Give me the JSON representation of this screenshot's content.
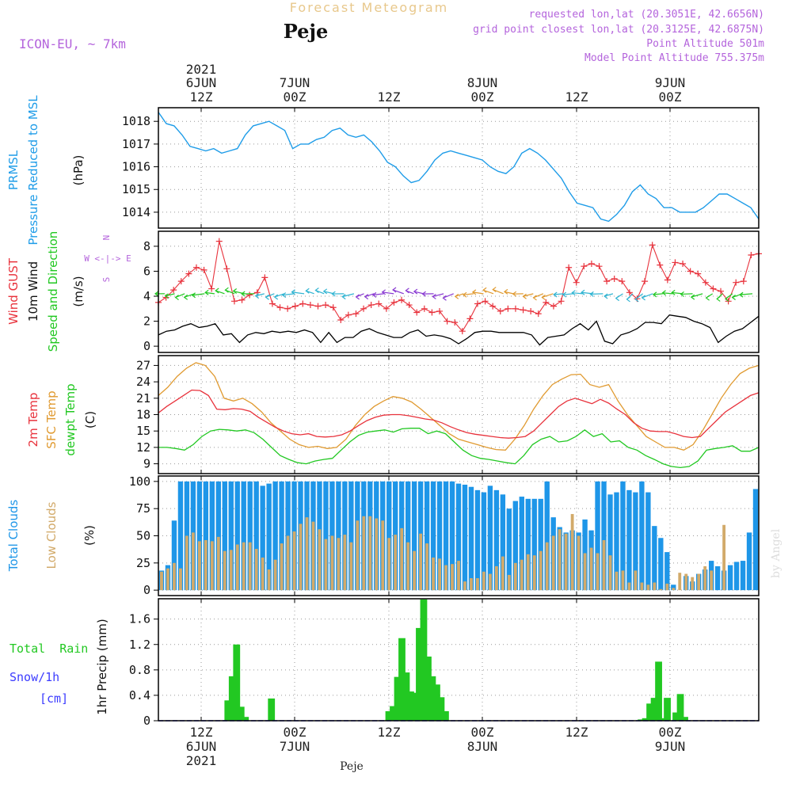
{
  "header": {
    "top_title": "Forecast Meteogram",
    "location": "Peje",
    "model": "ICON-EU, ~ 7km",
    "requested": "requested lon,lat (20.3051E, 42.6656N)",
    "grid_point": "grid point closest lon,lat (20.3125E, 42.6875N)",
    "point_altitude": "Point Altitude 501m",
    "model_altitude": "Model Point Altitude 755.375m",
    "footer_location": "Peje",
    "watermark": "by Angel"
  },
  "colors": {
    "pressure": "#1e9ce8",
    "gust": "#e8323c",
    "wind": "#000000",
    "temp2m": "#e8323c",
    "sfc": "#e09a30",
    "dewpt": "#22c822",
    "total_clouds": "#1e96e8",
    "low_clouds": "#d2aa6a",
    "rain": "#22c822",
    "snow": "#3c3cff",
    "label_purple": "#b464dc",
    "header_gold": "#e8c88c"
  },
  "time_axis": {
    "top": [
      {
        "year": "2021",
        "day": "6JUN",
        "hour": "12Z"
      },
      {
        "year": "",
        "day": "7JUN",
        "hour": "00Z"
      },
      {
        "year": "",
        "day": "",
        "hour": "12Z"
      },
      {
        "year": "",
        "day": "8JUN",
        "hour": "00Z"
      },
      {
        "year": "",
        "day": "",
        "hour": "12Z"
      },
      {
        "year": "",
        "day": "9JUN",
        "hour": "00Z"
      }
    ],
    "bottom": [
      {
        "hour": "12Z",
        "day": "6JUN",
        "year": "2021"
      },
      {
        "hour": "00Z",
        "day": "7JUN",
        "year": ""
      },
      {
        "hour": "12Z",
        "day": "",
        "year": ""
      },
      {
        "hour": "00Z",
        "day": "8JUN",
        "year": ""
      },
      {
        "hour": "12Z",
        "day": "",
        "year": ""
      },
      {
        "hour": "00Z",
        "day": "9JUN",
        "year": ""
      }
    ]
  },
  "labels": {
    "prmsl": "PRMSL",
    "pressure_msl": "Pressure Reduced to MSL",
    "hpa": "(hPa)",
    "wind_gust": "Wind GUST",
    "wind_10m": "10m Wind",
    "speed_dir": "Speed and Direction",
    "ms": "(m/s)",
    "compass_n": "N",
    "compass_we": "W <-|-> E",
    "compass_s": "S",
    "temp2m": "2m Temp",
    "sfc_temp": "SFC Temp",
    "dewpt": "dewpt Temp",
    "celsius": "(C)",
    "total_clouds": "Total Clouds",
    "low_clouds": "Low Clouds",
    "pct": "(%)",
    "total_rain": "Total  Rain",
    "snow": "Snow/1h",
    "cm": "[cm]",
    "precip": "1hr Precip (mm)"
  },
  "chart_data": [
    {
      "type": "line",
      "title": "PRMSL Pressure Reduced to MSL",
      "ylabel": "hPa",
      "ylim": [
        1013.3,
        1018.6
      ],
      "yticks": [
        1014,
        1015,
        1016,
        1017,
        1018
      ],
      "series": [
        {
          "name": "PRMSL",
          "values": [
            1018.4,
            1017.9,
            1017.8,
            1017.4,
            1016.9,
            1016.8,
            1016.7,
            1016.8,
            1016.6,
            1016.7,
            1016.8,
            1017.4,
            1017.8,
            1017.9,
            1018.0,
            1017.8,
            1017.6,
            1016.8,
            1017.0,
            1017.0,
            1017.2,
            1017.3,
            1017.6,
            1017.7,
            1017.4,
            1017.3,
            1017.4,
            1017.1,
            1016.7,
            1016.2,
            1016.0,
            1015.6,
            1015.3,
            1015.4,
            1015.8,
            1016.3,
            1016.6,
            1016.7,
            1016.6,
            1016.5,
            1016.4,
            1016.3,
            1016.0,
            1015.8,
            1015.7,
            1016.0,
            1016.6,
            1016.8,
            1016.6,
            1016.3,
            1015.9,
            1015.5,
            1014.9,
            1014.4,
            1014.3,
            1014.2,
            1013.7,
            1013.6,
            1013.9,
            1014.3,
            1014.9,
            1015.2,
            1014.8,
            1014.6,
            1014.2,
            1014.2,
            1014.0,
            1014.0,
            1014.0,
            1014.2,
            1014.5,
            1014.8,
            1014.8,
            1014.6,
            1014.4,
            1014.2,
            1013.7
          ]
        }
      ]
    },
    {
      "type": "line",
      "title": "Wind GUST / 10m Wind Speed and Direction",
      "ylabel": "m/s",
      "ylim": [
        -0.5,
        9.2
      ],
      "yticks": [
        0,
        2,
        4,
        6,
        8
      ],
      "series": [
        {
          "name": "Wind GUST",
          "values": [
            3.5,
            3.9,
            4.5,
            5.2,
            5.8,
            6.3,
            6.1,
            4.6,
            8.4,
            6.2,
            3.6,
            3.7,
            4.1,
            4.3,
            5.5,
            3.4,
            3.1,
            3.0,
            3.2,
            3.4,
            3.3,
            3.2,
            3.3,
            3.1,
            2.1,
            2.5,
            2.6,
            3.0,
            3.3,
            3.4,
            3.0,
            3.5,
            3.7,
            3.3,
            2.7,
            3.0,
            2.7,
            2.8,
            2.0,
            1.9,
            1.2,
            2.2,
            3.4,
            3.6,
            3.2,
            2.8,
            3.0,
            3.0,
            2.9,
            2.8,
            2.6,
            3.5,
            3.2,
            3.6,
            6.3,
            5.1,
            6.4,
            6.6,
            6.4,
            5.2,
            5.4,
            5.2,
            4.3,
            3.8,
            5.2,
            8.1,
            6.5,
            5.3,
            6.7,
            6.6,
            6.0,
            5.8,
            5.1,
            4.6,
            4.4,
            3.6,
            5.1,
            5.2,
            7.3,
            7.4
          ]
        },
        {
          "name": "10m Wind",
          "values": [
            0.9,
            1.2,
            1.3,
            1.6,
            1.8,
            1.5,
            1.6,
            1.8,
            0.9,
            1.0,
            0.3,
            0.9,
            1.1,
            1.0,
            1.2,
            1.1,
            1.2,
            1.1,
            1.3,
            1.1,
            0.3,
            1.1,
            0.3,
            0.7,
            0.7,
            1.2,
            1.4,
            1.1,
            0.9,
            0.7,
            0.7,
            1.1,
            1.3,
            0.8,
            0.9,
            0.8,
            0.6,
            0.2,
            0.6,
            1.1,
            1.2,
            1.2,
            1.1,
            1.1,
            1.1,
            1.1,
            0.9,
            0.1,
            0.7,
            0.8,
            0.9,
            1.4,
            1.8,
            1.3,
            2.0,
            0.4,
            0.2,
            0.9,
            1.1,
            1.4,
            1.9,
            1.9,
            1.8,
            2.5,
            2.4,
            2.3,
            2.0,
            1.8,
            1.5,
            0.3,
            0.8,
            1.2,
            1.4,
            1.9,
            2.4
          ]
        }
      ]
    },
    {
      "type": "line",
      "title": "2m Temp / SFC Temp / dewpt Temp",
      "ylabel": "C",
      "ylim": [
        7.2,
        28.8
      ],
      "yticks": [
        9,
        12,
        15,
        18,
        21,
        24,
        27
      ],
      "series": [
        {
          "name": "2m Temp",
          "values": [
            18.3,
            19.5,
            20.5,
            21.5,
            22.5,
            22.4,
            21.5,
            19.0,
            18.9,
            19.1,
            19.0,
            18.6,
            17.5,
            16.6,
            15.7,
            15.0,
            14.5,
            14.3,
            14.5,
            14.0,
            13.9,
            14.0,
            14.3,
            15.0,
            16.0,
            16.9,
            17.5,
            17.9,
            18.0,
            18.0,
            17.8,
            17.5,
            17.2,
            17.0,
            16.5,
            15.8,
            15.2,
            14.7,
            14.4,
            14.2,
            14.0,
            13.8,
            13.7,
            13.8,
            14.0,
            15.0,
            16.5,
            18.0,
            19.5,
            20.5,
            21.0,
            20.5,
            20.0,
            20.8,
            20.1,
            19.0,
            18.0,
            16.5,
            15.5,
            15.0,
            14.9,
            14.9,
            14.5,
            14.0,
            13.8,
            14.0,
            15.5,
            17.0,
            18.5,
            19.5,
            20.5,
            21.5,
            22.0
          ]
        },
        {
          "name": "SFC Temp",
          "values": [
            21.5,
            23.0,
            25.0,
            26.5,
            27.5,
            27.0,
            25.0,
            21.0,
            20.5,
            21.0,
            20.0,
            18.5,
            16.5,
            15.0,
            13.5,
            12.5,
            12.0,
            12.2,
            11.8,
            12.0,
            13.5,
            16.0,
            18.0,
            19.5,
            20.5,
            21.3,
            21.0,
            20.3,
            19.0,
            17.5,
            16.0,
            14.5,
            13.5,
            13.0,
            12.5,
            12.0,
            11.6,
            11.5,
            13.5,
            16.0,
            19.0,
            21.5,
            23.5,
            24.5,
            25.3,
            25.4,
            23.5,
            23.0,
            23.5,
            20.5,
            18.0,
            16.0,
            14.0,
            13.0,
            12.0,
            12.0,
            11.5,
            12.5,
            15.0,
            18.0,
            21.0,
            23.5,
            25.5,
            26.5,
            27.0
          ]
        },
        {
          "name": "dewpt Temp",
          "values": [
            12.0,
            12.0,
            11.8,
            11.5,
            12.5,
            14.0,
            15.0,
            15.3,
            15.2,
            15.0,
            15.2,
            14.7,
            13.5,
            12.0,
            10.5,
            9.8,
            9.2,
            9.0,
            9.5,
            9.8,
            10.0,
            11.5,
            13.0,
            14.2,
            14.8,
            15.0,
            15.2,
            14.8,
            15.4,
            15.5,
            15.5,
            14.5,
            15.0,
            14.5,
            13.0,
            11.5,
            10.5,
            10.0,
            9.8,
            9.5,
            9.2,
            9.0,
            10.5,
            12.5,
            13.5,
            14.0,
            13.0,
            13.2,
            14.0,
            15.2,
            14.0,
            14.5,
            13.0,
            13.2,
            12.0,
            11.5,
            10.5,
            9.8,
            9.0,
            8.5,
            8.3,
            8.5,
            9.5,
            11.5,
            11.8,
            12.0,
            12.3,
            11.3,
            11.3,
            12.0
          ]
        }
      ]
    },
    {
      "type": "bar",
      "title": "Total Clouds / Low Clouds",
      "ylabel": "%",
      "ylim": [
        -5,
        105
      ],
      "yticks": [
        0,
        25,
        50,
        75,
        100
      ],
      "series": [
        {
          "name": "Total Clouds",
          "values": [
            18,
            23,
            64,
            100,
            100,
            100,
            100,
            100,
            100,
            100,
            100,
            100,
            100,
            100,
            100,
            100,
            96,
            98,
            100,
            100,
            100,
            100,
            100,
            100,
            100,
            100,
            100,
            100,
            100,
            100,
            100,
            100,
            100,
            100,
            100,
            100,
            100,
            100,
            100,
            100,
            100,
            100,
            100,
            100,
            100,
            100,
            100,
            98,
            97,
            95,
            92,
            90,
            96,
            92,
            88,
            75,
            82,
            86,
            84,
            84,
            84,
            100,
            67,
            58,
            53,
            55,
            53,
            65,
            55,
            100,
            100,
            88,
            90,
            100,
            92,
            90,
            100,
            90,
            59,
            48,
            35,
            5,
            0,
            13,
            8,
            15,
            19,
            27,
            22,
            18,
            23,
            26,
            27,
            53,
            93
          ]
        },
        {
          "name": "Low Clouds",
          "values": [
            17,
            20,
            25,
            20,
            50,
            53,
            45,
            46,
            45,
            49,
            36,
            37,
            42,
            44,
            44,
            38,
            30,
            19,
            28,
            43,
            50,
            54,
            61,
            67,
            63,
            56,
            47,
            50,
            48,
            51,
            44,
            64,
            68,
            68,
            66,
            64,
            48,
            51,
            57,
            44,
            36,
            52,
            43,
            30,
            29,
            23,
            24,
            27,
            8,
            11,
            11,
            17,
            15,
            22,
            31,
            14,
            25,
            28,
            33,
            32,
            36,
            44,
            50,
            56,
            52,
            70,
            50,
            34,
            39,
            34,
            46,
            32,
            17,
            18,
            7,
            18,
            7,
            5,
            7,
            1,
            6,
            2,
            16,
            15,
            12,
            15,
            22,
            18,
            0,
            60
          ]
        }
      ]
    },
    {
      "type": "bar",
      "title": "1hr Precip",
      "ylabel": "mm",
      "ylim": [
        0,
        1.92
      ],
      "yticks": [
        0,
        0.4,
        0.8,
        1.2,
        1.6
      ],
      "series": [
        {
          "name": "Total Rain",
          "values": [
            0,
            0,
            0,
            0,
            0,
            0,
            0,
            0,
            0,
            0,
            0,
            0,
            0,
            0,
            0,
            0.32,
            0.7,
            1.2,
            0.22,
            0.06,
            0,
            0,
            0,
            0,
            0,
            0.35,
            0,
            0,
            0,
            0,
            0,
            0,
            0,
            0,
            0,
            0,
            0,
            0,
            0,
            0,
            0,
            0,
            0,
            0,
            0,
            0,
            0,
            0,
            0,
            0,
            0,
            0,
            0.15,
            0.23,
            0.69,
            1.3,
            0.76,
            0.46,
            0.44,
            1.46,
            1.91,
            1.01,
            0.7,
            0.57,
            0.37,
            0.15,
            0,
            0,
            0,
            0,
            0,
            0,
            0,
            0,
            0,
            0,
            0,
            0,
            0,
            0,
            0,
            0,
            0,
            0,
            0,
            0,
            0,
            0,
            0,
            0,
            0,
            0,
            0,
            0,
            0,
            0,
            0,
            0,
            0,
            0,
            0,
            0,
            0,
            0,
            0,
            0,
            0,
            0,
            0,
            0,
            0.02,
            0.04,
            0.27,
            0.36,
            0.93,
            0.04,
            0.36,
            0,
            0.13,
            0.42,
            0.06,
            0,
            0,
            0,
            0,
            0,
            0,
            0,
            0,
            0,
            0,
            0,
            0,
            0,
            0,
            0,
            0,
            0
          ]
        }
      ]
    }
  ]
}
